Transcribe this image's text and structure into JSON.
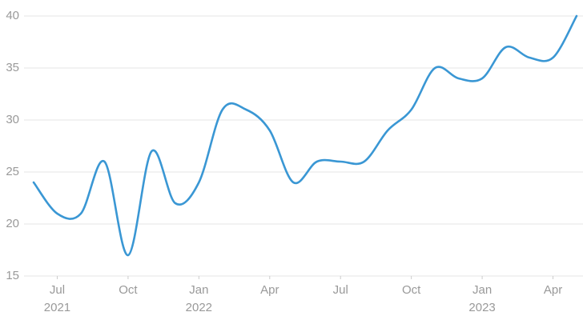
{
  "chart_data": {
    "type": "line",
    "x": [
      "2021-06",
      "2021-07",
      "2021-08",
      "2021-09",
      "2021-10",
      "2021-11",
      "2021-12",
      "2022-01",
      "2022-02",
      "2022-03",
      "2022-04",
      "2022-05",
      "2022-06",
      "2022-07",
      "2022-08",
      "2022-09",
      "2022-10",
      "2022-11",
      "2022-12",
      "2023-01",
      "2023-02",
      "2023-03",
      "2023-04",
      "2023-05"
    ],
    "series": [
      {
        "color": "#3a97d4",
        "values": [
          24,
          21,
          21,
          26,
          17,
          27,
          22,
          24,
          31,
          31,
          29,
          24,
          26,
          26,
          26,
          29,
          31,
          35,
          34,
          34,
          37,
          36,
          36,
          40
        ]
      }
    ],
    "xlim": [
      "2021-06",
      "2023-05"
    ],
    "xticks": [
      {
        "value": "2021-07",
        "label": "Jul",
        "year": "2021"
      },
      {
        "value": "2021-10",
        "label": "Oct"
      },
      {
        "value": "2022-01",
        "label": "Jan",
        "year": "2022"
      },
      {
        "value": "2022-04",
        "label": "Apr"
      },
      {
        "value": "2022-07",
        "label": "Jul"
      },
      {
        "value": "2022-10",
        "label": "Oct"
      },
      {
        "value": "2023-01",
        "label": "Jan",
        "year": "2023"
      },
      {
        "value": "2023-04",
        "label": "Apr"
      }
    ],
    "ylim": [
      15,
      40
    ],
    "yticks": [
      15,
      20,
      25,
      30,
      35,
      40
    ],
    "grid": true
  }
}
